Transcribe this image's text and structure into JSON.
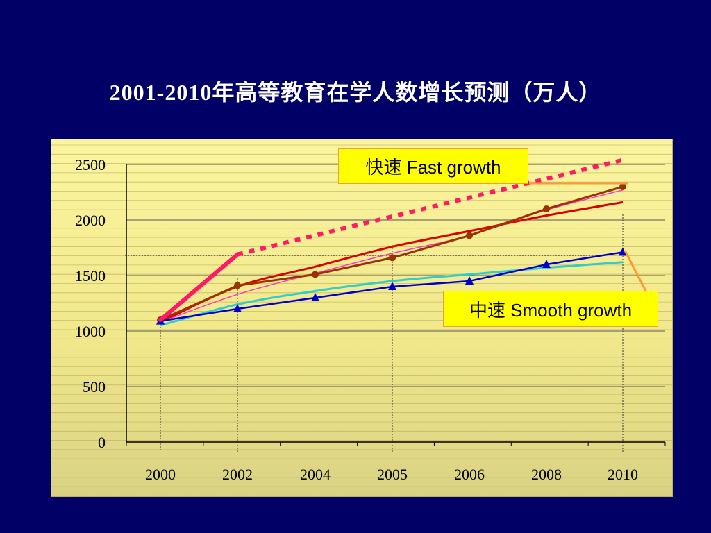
{
  "title": "2001-2010年高等教育在学人数增长预测（万人）",
  "callouts": {
    "fast": "快速 Fast growth",
    "smooth": "中速 Smooth growth"
  },
  "colors": {
    "background": "#000066",
    "fast_projection": "#ff1a66",
    "smooth_line": "#0000cc",
    "brown_line": "#993300",
    "red_line": "#dd0000",
    "cyan_line": "#33cccc",
    "magenta_line": "#ff33cc",
    "orange_connector": "#ff9933"
  },
  "chart_data": {
    "type": "line",
    "categories": [
      "2000",
      "2002",
      "2004",
      "2005",
      "2006",
      "2008",
      "2010"
    ],
    "ylim": [
      0,
      2500
    ],
    "yticks": [
      0,
      500,
      1000,
      1500,
      2000,
      2500
    ],
    "grid": true,
    "series": [
      {
        "name": "快速 Fast growth",
        "style": "dotted",
        "color": "#ff1a66",
        "values": [
          1100,
          1690,
          null,
          null,
          null,
          null,
          2540
        ]
      },
      {
        "style": "line-markers-circle",
        "color": "#993300",
        "values": [
          1100,
          1410,
          1510,
          1660,
          1860,
          2100,
          2300
        ]
      },
      {
        "name": "中速 Smooth growth",
        "style": "line-markers-triangle",
        "color": "#0000cc",
        "values": [
          1090,
          1200,
          1300,
          1400,
          1450,
          1600,
          1710
        ]
      },
      {
        "style": "smooth",
        "color": "#dd0000",
        "values": [
          1080,
          1400,
          1580,
          1760,
          1900,
          2040,
          2160
        ]
      },
      {
        "style": "smooth",
        "color": "#33cccc",
        "values": [
          1050,
          1240,
          1360,
          1450,
          1510,
          1570,
          1620
        ]
      },
      {
        "style": "thin",
        "color": "#ff33cc",
        "values": [
          1080,
          1330,
          1520,
          1700,
          1860,
          2090,
          2270
        ]
      }
    ]
  }
}
